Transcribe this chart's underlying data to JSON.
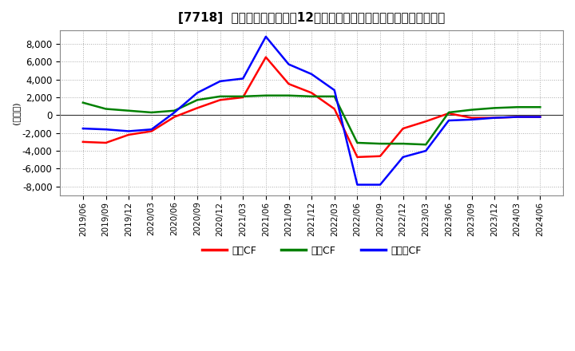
{
  "title": "[7718]  キャッシュフローの12か月移動合計の対前年同期増減額の推移",
  "ylabel": "(百万円)",
  "ylim": [
    -9000,
    9500
  ],
  "yticks": [
    -8000,
    -6000,
    -4000,
    -2000,
    0,
    2000,
    4000,
    6000,
    8000
  ],
  "legend_labels": [
    "営業CF",
    "投資CF",
    "フリーCF"
  ],
  "legend_colors": [
    "#ff0000",
    "#008000",
    "#0000ff"
  ],
  "dates": [
    "2019/06",
    "2019/09",
    "2019/12",
    "2020/03",
    "2020/06",
    "2020/09",
    "2020/12",
    "2021/03",
    "2021/06",
    "2021/09",
    "2021/12",
    "2022/03",
    "2022/06",
    "2022/09",
    "2022/12",
    "2023/03",
    "2023/06",
    "2023/09",
    "2023/12",
    "2024/03",
    "2024/06"
  ],
  "operating_cf": [
    -3000,
    -3100,
    -2200,
    -1800,
    -200,
    800,
    1700,
    2000,
    6500,
    3500,
    2500,
    700,
    -4700,
    -4600,
    -1500,
    -700,
    200,
    -300,
    -300,
    -200,
    -200
  ],
  "investing_cf": [
    1400,
    700,
    500,
    300,
    500,
    1700,
    2100,
    2100,
    2200,
    2200,
    2100,
    2100,
    -3100,
    -3200,
    -3200,
    -3300,
    300,
    600,
    800,
    900,
    900
  ],
  "free_cf": [
    -1500,
    -1600,
    -1800,
    -1600,
    300,
    2500,
    3800,
    4100,
    8800,
    5700,
    4600,
    2800,
    -7800,
    -7800,
    -4700,
    -4000,
    -600,
    -500,
    -300,
    -200,
    -200
  ],
  "bg_color": "#ffffff",
  "grid_color": "#aaaaaa",
  "title_fontsize": 11
}
